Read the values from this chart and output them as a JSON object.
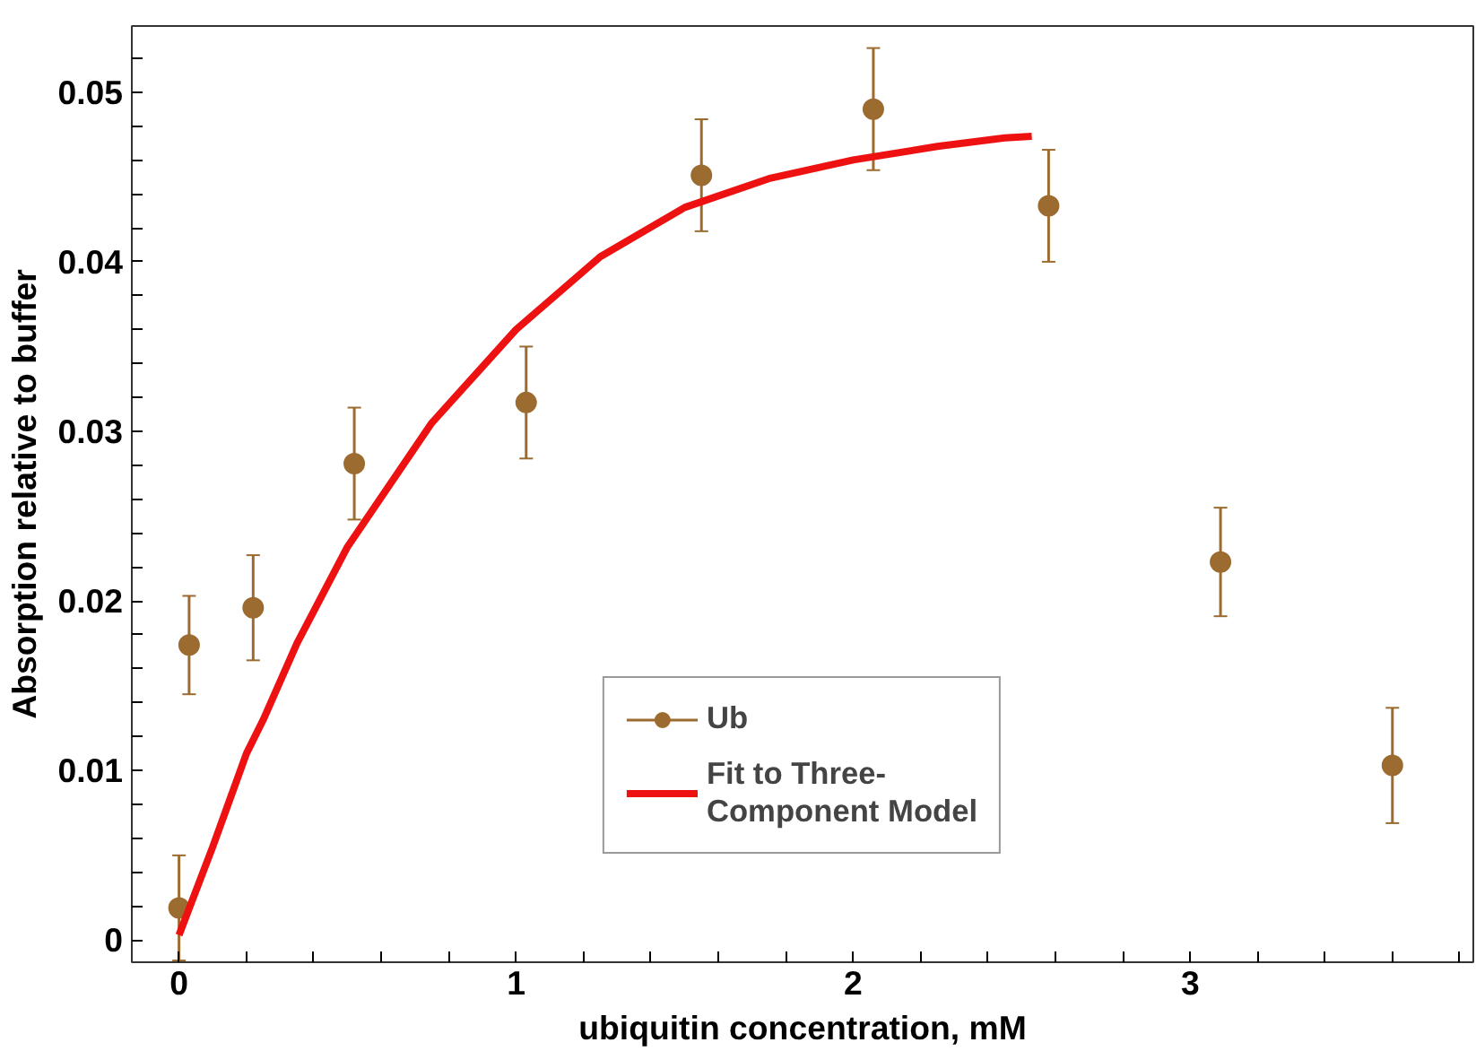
{
  "chart_data": {
    "type": "scatter",
    "xlabel": "ubiquitin concentration, mM",
    "ylabel": "Absorption relative to buffer",
    "xlim": [
      -0.14,
      3.84
    ],
    "ylim": [
      -0.0013,
      0.0539
    ],
    "xticks": [
      0,
      {
        "value": 0.2,
        "label": null
      },
      {
        "value": 0.4,
        "label": null
      },
      {
        "value": 0.6,
        "label": null
      },
      {
        "value": 0.8,
        "label": null
      },
      1,
      {
        "value": 1.2,
        "label": null
      },
      {
        "value": 1.4,
        "label": null
      },
      {
        "value": 1.6,
        "label": null
      },
      {
        "value": 1.8,
        "label": null
      },
      2,
      {
        "value": 2.2,
        "label": null
      },
      {
        "value": 2.4,
        "label": null
      },
      {
        "value": 2.6,
        "label": null
      },
      {
        "value": 2.8,
        "label": null
      },
      3,
      {
        "value": 3.2,
        "label": null
      },
      {
        "value": 3.4,
        "label": null
      },
      {
        "value": 3.6,
        "label": null
      },
      {
        "value": 3.8,
        "label": null
      }
    ],
    "yticks": [
      0,
      {
        "value": 0.002,
        "label": null
      },
      {
        "value": 0.004,
        "label": null
      },
      {
        "value": 0.006,
        "label": null
      },
      {
        "value": 0.008,
        "label": null
      },
      0.01,
      {
        "value": 0.012,
        "label": null
      },
      {
        "value": 0.014,
        "label": null
      },
      {
        "value": 0.016,
        "label": null
      },
      {
        "value": 0.018,
        "label": null
      },
      0.02,
      {
        "value": 0.022,
        "label": null
      },
      {
        "value": 0.024,
        "label": null
      },
      {
        "value": 0.026,
        "label": null
      },
      {
        "value": 0.028,
        "label": null
      },
      0.03,
      {
        "value": 0.032,
        "label": null
      },
      {
        "value": 0.034,
        "label": null
      },
      {
        "value": 0.036,
        "label": null
      },
      {
        "value": 0.038,
        "label": null
      },
      0.04,
      {
        "value": 0.042,
        "label": null
      },
      {
        "value": 0.044,
        "label": null
      },
      {
        "value": 0.046,
        "label": null
      },
      {
        "value": 0.048,
        "label": null
      },
      0.05,
      {
        "value": 0.052,
        "label": null
      }
    ],
    "grid": false,
    "legend": "bottom",
    "series": [
      {
        "name": "Ub",
        "marker": "circle",
        "color": "#9c6b30",
        "x": [
          0.0,
          0.03,
          0.22,
          0.52,
          1.03,
          1.55,
          2.06,
          2.58,
          3.09,
          3.6
        ],
        "values": [
          0.0019,
          0.0174,
          0.0196,
          0.0281,
          0.0317,
          0.0451,
          0.049,
          0.0433,
          0.0223,
          0.0103
        ],
        "errors": [
          0.0031,
          0.0029,
          0.0031,
          0.0033,
          0.0033,
          0.0033,
          0.0036,
          0.0033,
          0.0032,
          0.0034
        ]
      },
      {
        "name": "Fit to Three-\nComponent Model",
        "type": "line",
        "color": "#ee1111",
        "line_style": "solid",
        "x": [
          0.0,
          0.1,
          0.2,
          0.25,
          0.35,
          0.5,
          0.75,
          1.0,
          1.25,
          1.5,
          1.75,
          2.0,
          2.25,
          2.45,
          2.53
        ],
        "values": [
          0.0003,
          0.0055,
          0.011,
          0.013,
          0.0175,
          0.0232,
          0.0305,
          0.036,
          0.0403,
          0.0432,
          0.0449,
          0.046,
          0.0468,
          0.0473,
          0.0474
        ]
      }
    ]
  }
}
